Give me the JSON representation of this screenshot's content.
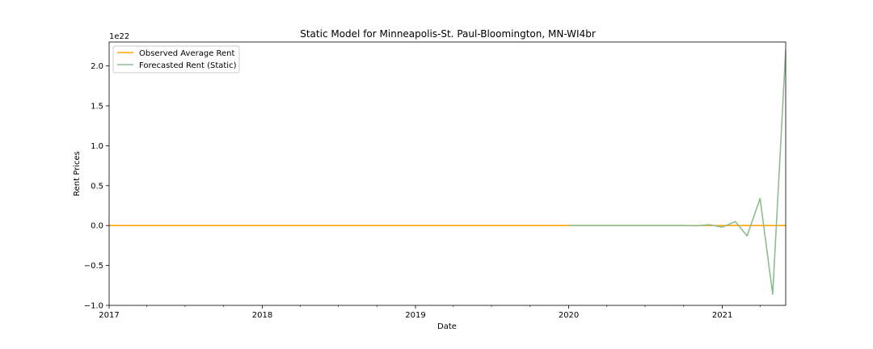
{
  "chart_data": {
    "type": "line",
    "title": "Static Model for Minneapolis-St. Paul-Bloomington, MN-WI4br",
    "xlabel": "Date",
    "ylabel": "Rent Prices",
    "y_offset_text": "1e22",
    "y_scale": 1e+22,
    "xlim": [
      "2017-01-01",
      "2021-06-01"
    ],
    "ylim": [
      -1.0,
      2.3
    ],
    "x_ticks": [
      {
        "date": "2017-01-01",
        "label": "2017"
      },
      {
        "date": "2018-01-01",
        "label": "2018"
      },
      {
        "date": "2019-01-01",
        "label": "2019"
      },
      {
        "date": "2020-01-01",
        "label": "2020"
      },
      {
        "date": "2021-01-01",
        "label": "2021"
      }
    ],
    "x_minor_ticks": [
      "2017-04-01",
      "2017-07-01",
      "2017-10-01",
      "2018-04-01",
      "2018-07-01",
      "2018-10-01",
      "2019-04-01",
      "2019-07-01",
      "2019-10-01",
      "2020-04-01",
      "2020-07-01",
      "2020-10-01",
      "2021-04-01"
    ],
    "y_ticks": [
      {
        "value": -1.0,
        "label": "−1.0"
      },
      {
        "value": -0.5,
        "label": "−0.5"
      },
      {
        "value": 0.0,
        "label": "0.0"
      },
      {
        "value": 0.5,
        "label": "0.5"
      },
      {
        "value": 1.0,
        "label": "1.0"
      },
      {
        "value": 1.5,
        "label": "1.5"
      },
      {
        "value": 2.0,
        "label": "2.0"
      }
    ],
    "grid": false,
    "legend_position": "upper-left",
    "series": [
      {
        "name": "Observed Average Rent",
        "color": "#ffa500",
        "points": [
          [
            "2017-01-01",
            0
          ],
          [
            "2021-06-01",
            0
          ]
        ]
      },
      {
        "name": "Forecasted Rent (Static)",
        "color": "#8fbc8f",
        "points": [
          [
            "2020-01-01",
            0
          ],
          [
            "2020-02-01",
            0
          ],
          [
            "2020-03-01",
            0
          ],
          [
            "2020-04-01",
            0
          ],
          [
            "2020-05-01",
            0
          ],
          [
            "2020-06-01",
            0
          ],
          [
            "2020-07-01",
            0
          ],
          [
            "2020-08-01",
            0
          ],
          [
            "2020-09-01",
            0
          ],
          [
            "2020-10-01",
            0
          ],
          [
            "2020-11-01",
            -0.003
          ],
          [
            "2020-12-01",
            0.01
          ],
          [
            "2021-01-01",
            -0.02
          ],
          [
            "2021-02-01",
            0.05
          ],
          [
            "2021-03-01",
            -0.13
          ],
          [
            "2021-04-01",
            0.34
          ],
          [
            "2021-05-01",
            -0.86
          ],
          [
            "2021-06-01",
            2.2
          ]
        ]
      }
    ]
  }
}
